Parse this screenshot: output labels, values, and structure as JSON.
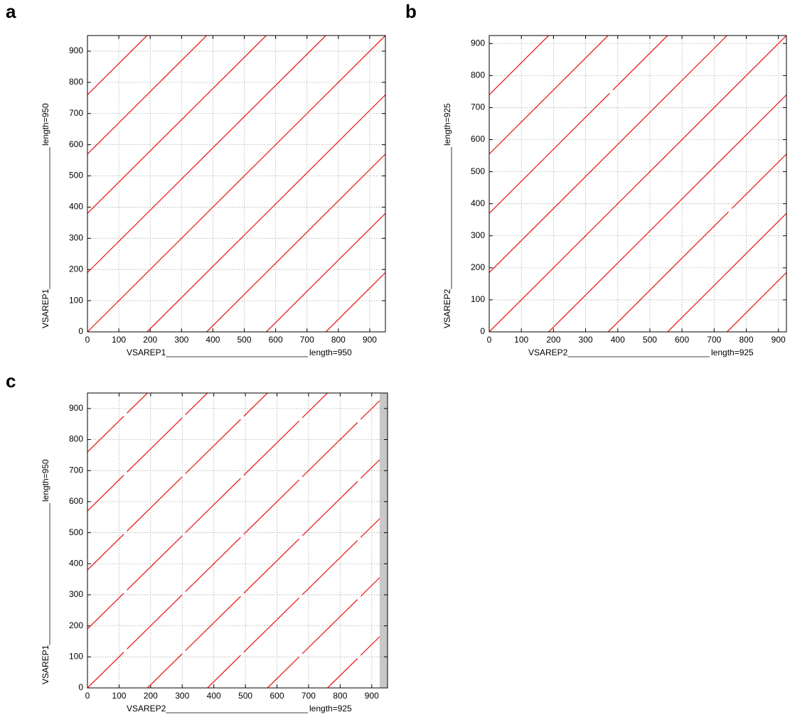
{
  "chart_data": [
    {
      "panel_label": "a",
      "type": "line",
      "color": "#e8231f",
      "grid": true,
      "xlim": [
        0,
        950
      ],
      "ylim": [
        0,
        950
      ],
      "xticks": [
        0,
        100,
        200,
        300,
        400,
        500,
        600,
        700,
        800,
        900
      ],
      "yticks": [
        0,
        100,
        200,
        300,
        400,
        500,
        600,
        700,
        800,
        900
      ],
      "xlabel": "VSAREP1",
      "xlabel_length": "length=950",
      "ylabel": "VSAREP1",
      "ylabel_length": "length=950",
      "series": [
        {
          "x": [
            0,
            190
          ],
          "values": [
            760,
            950
          ]
        },
        {
          "x": [
            0,
            380
          ],
          "values": [
            570,
            950
          ]
        },
        {
          "x": [
            0,
            570
          ],
          "values": [
            380,
            950
          ]
        },
        {
          "x": [
            0,
            760
          ],
          "values": [
            190,
            950
          ]
        },
        {
          "x": [
            0,
            950
          ],
          "values": [
            0,
            950
          ]
        },
        {
          "x": [
            190,
            950
          ],
          "values": [
            0,
            760
          ]
        },
        {
          "x": [
            380,
            950
          ],
          "values": [
            0,
            570
          ]
        },
        {
          "x": [
            570,
            950
          ],
          "values": [
            0,
            380
          ]
        },
        {
          "x": [
            760,
            950
          ],
          "values": [
            0,
            190
          ]
        }
      ]
    },
    {
      "panel_label": "b",
      "type": "line",
      "color": "#e8231f",
      "grid": true,
      "xlim": [
        0,
        925
      ],
      "ylim": [
        0,
        925
      ],
      "xticks": [
        0,
        100,
        200,
        300,
        400,
        500,
        600,
        700,
        800,
        900
      ],
      "yticks": [
        0,
        100,
        200,
        300,
        400,
        500,
        600,
        700,
        800,
        900
      ],
      "xlabel": "VSAREP2",
      "xlabel_length": "length=925",
      "ylabel": "VSAREP2",
      "ylabel_length": "length=925",
      "series": [
        {
          "x": [
            0,
            185
          ],
          "values": [
            740,
            925
          ]
        },
        {
          "x": [
            0,
            370
          ],
          "values": [
            555,
            925
          ]
        },
        {
          "x": [
            0,
            375,
            null,
            385,
            555
          ],
          "values": [
            370,
            745,
            null,
            755,
            925
          ]
        },
        {
          "x": [
            0,
            740
          ],
          "values": [
            185,
            925
          ]
        },
        {
          "x": [
            0,
            925
          ],
          "values": [
            0,
            925
          ]
        },
        {
          "x": [
            185,
            925
          ],
          "values": [
            0,
            740
          ]
        },
        {
          "x": [
            370,
            745,
            null,
            755,
            925
          ],
          "values": [
            0,
            375,
            null,
            385,
            555
          ]
        },
        {
          "x": [
            555,
            925
          ],
          "values": [
            0,
            370
          ]
        },
        {
          "x": [
            740,
            925
          ],
          "values": [
            0,
            185
          ]
        }
      ]
    },
    {
      "panel_label": "c",
      "type": "line",
      "color": "#e8231f",
      "grid": true,
      "xlim": [
        0,
        950
      ],
      "ylim": [
        0,
        950
      ],
      "shaded_xrange": [
        925,
        950
      ],
      "xticks": [
        0,
        100,
        200,
        300,
        400,
        500,
        600,
        700,
        800,
        900
      ],
      "yticks": [
        0,
        100,
        200,
        300,
        400,
        500,
        600,
        700,
        800,
        900
      ],
      "xlabel": "VSAREP2",
      "xlabel_length": "length=925",
      "ylabel": "VSAREP1",
      "ylabel_length": "length=950",
      "series": [
        {
          "x": [
            0,
            115,
            null,
            125,
            190
          ],
          "values": [
            760,
            875,
            null,
            885,
            950
          ]
        },
        {
          "x": [
            0,
            115,
            null,
            125,
            300,
            null,
            310,
            380
          ],
          "values": [
            570,
            685,
            null,
            695,
            870,
            null,
            880,
            950
          ]
        },
        {
          "x": [
            0,
            115,
            null,
            125,
            300,
            null,
            310,
            485,
            null,
            495,
            570
          ],
          "values": [
            380,
            495,
            null,
            505,
            680,
            null,
            690,
            865,
            null,
            875,
            950
          ]
        },
        {
          "x": [
            0,
            115,
            null,
            125,
            300,
            null,
            310,
            485,
            null,
            495,
            670,
            null,
            680,
            760
          ],
          "values": [
            190,
            305,
            null,
            315,
            490,
            null,
            500,
            675,
            null,
            685,
            860,
            null,
            870,
            950
          ]
        },
        {
          "x": [
            0,
            115,
            null,
            125,
            300,
            null,
            310,
            485,
            null,
            495,
            670,
            null,
            680,
            855,
            null,
            865,
            925
          ],
          "values": [
            0,
            115,
            null,
            125,
            300,
            null,
            310,
            485,
            null,
            495,
            670,
            null,
            680,
            855,
            null,
            865,
            925
          ]
        },
        {
          "x": [
            190,
            300,
            null,
            310,
            485,
            null,
            495,
            670,
            null,
            680,
            855,
            null,
            865,
            925
          ],
          "values": [
            0,
            110,
            null,
            120,
            295,
            null,
            305,
            480,
            null,
            490,
            665,
            null,
            675,
            735
          ]
        },
        {
          "x": [
            380,
            485,
            null,
            495,
            670,
            null,
            680,
            855,
            null,
            865,
            925
          ],
          "values": [
            0,
            105,
            null,
            115,
            290,
            null,
            300,
            475,
            null,
            485,
            545
          ]
        },
        {
          "x": [
            570,
            670,
            null,
            680,
            855,
            null,
            865,
            925
          ],
          "values": [
            0,
            100,
            null,
            110,
            285,
            null,
            295,
            355
          ]
        },
        {
          "x": [
            760,
            855,
            null,
            865,
            925
          ],
          "values": [
            0,
            95,
            null,
            105,
            165
          ]
        }
      ]
    }
  ]
}
